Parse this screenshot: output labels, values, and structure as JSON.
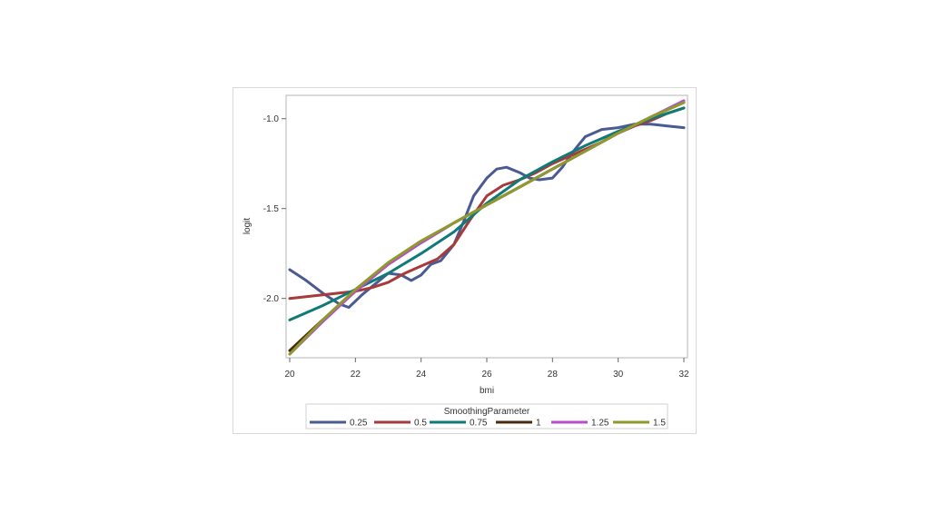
{
  "chart_data": {
    "type": "line",
    "title": "",
    "xlabel": "bmi",
    "ylabel": "logit",
    "xlim": [
      20,
      32
    ],
    "ylim": [
      -2.33,
      -0.87
    ],
    "x_ticks": [
      20,
      22,
      24,
      26,
      28,
      30,
      32
    ],
    "y_ticks": [
      -2.0,
      -1.5,
      -1.0
    ],
    "y_tick_labels": [
      "-2.0",
      "-1.5",
      "-1.0"
    ],
    "grid": false,
    "legend": {
      "title": "SmoothingParameter",
      "placement": "bottom"
    },
    "series": [
      {
        "name": "0.25",
        "color": "#4a5a92",
        "x": [
          20,
          20.5,
          21,
          21.5,
          21.8,
          22.2,
          22.6,
          23,
          23.4,
          23.7,
          24,
          24.3,
          24.6,
          25,
          25.3,
          25.6,
          26,
          26.3,
          26.6,
          27,
          27.3,
          27.6,
          28,
          28.3,
          28.6,
          29,
          29.5,
          30,
          30.5,
          31,
          31.5,
          32
        ],
        "y": [
          -1.84,
          -1.9,
          -1.97,
          -2.03,
          -2.05,
          -1.98,
          -1.92,
          -1.86,
          -1.87,
          -1.9,
          -1.87,
          -1.81,
          -1.79,
          -1.7,
          -1.57,
          -1.43,
          -1.33,
          -1.28,
          -1.27,
          -1.3,
          -1.33,
          -1.34,
          -1.33,
          -1.27,
          -1.19,
          -1.1,
          -1.06,
          -1.05,
          -1.03,
          -1.03,
          -1.04,
          -1.05
        ]
      },
      {
        "name": "0.5",
        "color": "#a73a3a",
        "x": [
          20,
          20.5,
          21,
          21.5,
          22,
          22.5,
          23,
          23.5,
          24,
          24.5,
          25,
          25.5,
          26,
          26.5,
          27,
          27.5,
          28,
          28.5,
          29,
          29.5,
          30,
          30.5,
          31,
          31.5,
          32
        ],
        "y": [
          -2.0,
          -1.99,
          -1.98,
          -1.97,
          -1.96,
          -1.94,
          -1.91,
          -1.86,
          -1.82,
          -1.78,
          -1.7,
          -1.56,
          -1.43,
          -1.37,
          -1.34,
          -1.3,
          -1.25,
          -1.21,
          -1.17,
          -1.13,
          -1.08,
          -1.04,
          -1.01,
          -0.97,
          -0.94
        ]
      },
      {
        "name": "0.75",
        "color": "#107a78",
        "x": [
          20,
          21,
          22,
          23,
          24,
          25,
          26,
          27,
          28,
          29,
          30,
          31,
          32
        ],
        "y": [
          -2.12,
          -2.04,
          -1.95,
          -1.86,
          -1.75,
          -1.63,
          -1.47,
          -1.34,
          -1.24,
          -1.15,
          -1.07,
          -1.0,
          -0.94
        ]
      },
      {
        "name": "1",
        "color": "#4a2a0e",
        "x": [
          20,
          21,
          22,
          23,
          24,
          25,
          26,
          27,
          28,
          29,
          30,
          31,
          32
        ],
        "y": [
          -2.29,
          -2.12,
          -1.96,
          -1.81,
          -1.69,
          -1.58,
          -1.48,
          -1.38,
          -1.28,
          -1.18,
          -1.08,
          -0.99,
          -0.91
        ]
      },
      {
        "name": "1.25",
        "color": "#b84ccf",
        "x": [
          20,
          21,
          22,
          23,
          24,
          25,
          26,
          27,
          28,
          29,
          30,
          31,
          32
        ],
        "y": [
          -2.31,
          -2.13,
          -1.96,
          -1.81,
          -1.69,
          -1.58,
          -1.48,
          -1.38,
          -1.28,
          -1.18,
          -1.08,
          -0.99,
          -0.9
        ]
      },
      {
        "name": "1.5",
        "color": "#8f9a2c",
        "x": [
          20,
          21,
          22,
          23,
          24,
          25,
          26,
          27,
          28,
          29,
          30,
          31,
          32
        ],
        "y": [
          -2.31,
          -2.12,
          -1.95,
          -1.8,
          -1.68,
          -1.58,
          -1.48,
          -1.38,
          -1.28,
          -1.18,
          -1.08,
          -0.99,
          -0.91
        ]
      }
    ]
  }
}
